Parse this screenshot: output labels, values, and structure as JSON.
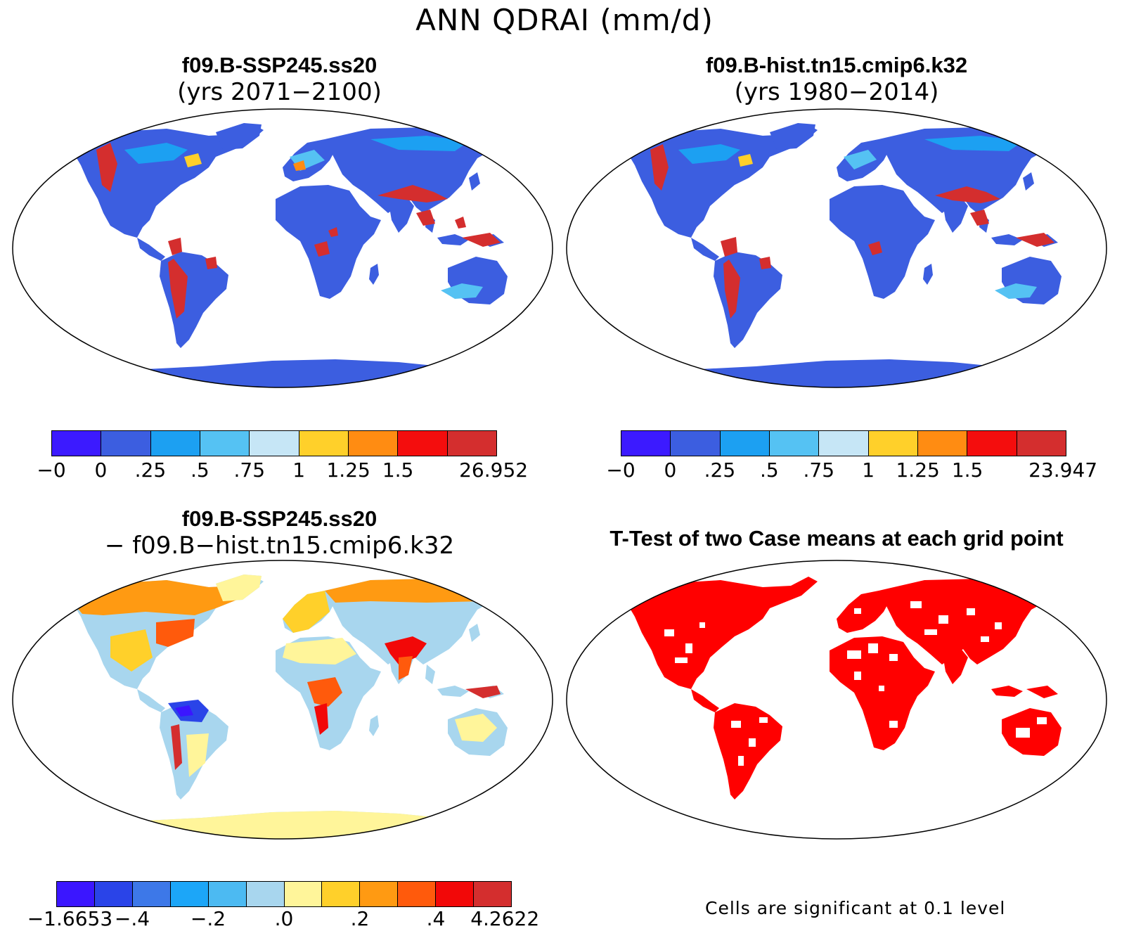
{
  "figure": {
    "title": "ANN QDRAI (mm/d)"
  },
  "panels": [
    {
      "id": "ssp245",
      "title_line1": "f09.B-SSP245.ss20",
      "title_line2": "(yrs 2071−2100)",
      "colorbar": {
        "colors": [
          "#3c1aff",
          "#3c5ee0",
          "#1ca0f2",
          "#55c2f3",
          "#c6e6f6",
          "#ffd02a",
          "#ff8c12",
          "#f40d0d",
          "#d42e2e"
        ],
        "tick_labels": [
          "−0",
          "0",
          ".25",
          ".5",
          ".75",
          "1",
          "1.25",
          "1.5",
          "26.952"
        ]
      }
    },
    {
      "id": "hist",
      "title_line1": "f09.B-hist.tn15.cmip6.k32",
      "title_line2": "(yrs 1980−2014)",
      "colorbar": {
        "colors": [
          "#3c1aff",
          "#3c5ee0",
          "#1ca0f2",
          "#55c2f3",
          "#c6e6f6",
          "#ffd02a",
          "#ff8c12",
          "#f40d0d",
          "#d42e2e"
        ],
        "tick_labels": [
          "−0",
          "0",
          ".25",
          ".5",
          ".75",
          "1",
          "1.25",
          "1.5",
          "23.947"
        ]
      }
    },
    {
      "id": "diff",
      "title_line1": "f09.B-SSP245.ss20",
      "title_line2": "− f09.B−hist.tn15.cmip6.k32",
      "colorbar": {
        "colors": [
          "#3b16ff",
          "#2a44e8",
          "#3d78e8",
          "#1ca6f8",
          "#4cbaf2",
          "#a8d6ee",
          "#fff59a",
          "#ffd02a",
          "#ff9a12",
          "#ff5a0c",
          "#f20808",
          "#d42e2e"
        ],
        "tick_labels": [
          "−1.6653",
          "−.4",
          "−.2",
          ".0",
          ".2",
          ".4",
          "4.2622"
        ]
      }
    },
    {
      "id": "ttest",
      "title_line1": "T-Test of two Case means at each grid point",
      "note": "Cells are significant at 0.1 level",
      "significant_color": "#ff0000"
    }
  ],
  "style": {
    "land_base_abs": "#3c5ee0",
    "high_red": "#d42e2e",
    "diff_base": "#a8d6ee",
    "diff_warm": "#fff59a"
  }
}
